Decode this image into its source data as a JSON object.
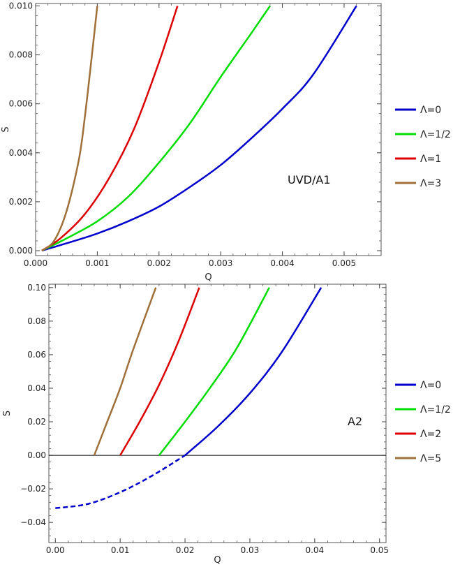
{
  "chart_data": [
    {
      "type": "line",
      "xlabel": "Q",
      "ylabel": "S",
      "xlim": [
        0,
        0.0056
      ],
      "ylim": [
        -0.0002,
        0.0101
      ],
      "x_ticks": [
        "0.000",
        "0.001",
        "0.002",
        "0.003",
        "0.004",
        "0.005"
      ],
      "y_ticks": [
        "0.000",
        "0.002",
        "0.004",
        "0.006",
        "0.008",
        "0.010"
      ],
      "annotation": "UVD/A1",
      "legend_position": "right",
      "series": [
        {
          "name": "Λ=0",
          "color": "#0000cc",
          "x": [
            0.0001,
            0.0005,
            0.001,
            0.0015,
            0.002,
            0.0025,
            0.003,
            0.0035,
            0.004,
            0.0045,
            0.0052
          ],
          "y": [
            0.0,
            0.0003,
            0.0007,
            0.0012,
            0.0018,
            0.0026,
            0.0035,
            0.0046,
            0.0058,
            0.0072,
            0.01
          ]
        },
        {
          "name": "Λ=1/2",
          "color": "#00dd00",
          "x": [
            0.0001,
            0.0005,
            0.001,
            0.0015,
            0.002,
            0.0025,
            0.003,
            0.0035,
            0.0038
          ],
          "y": [
            0.0,
            0.0005,
            0.0012,
            0.0022,
            0.0036,
            0.0052,
            0.0071,
            0.0089,
            0.01
          ]
        },
        {
          "name": "Λ=1",
          "color": "#dd0000",
          "x": [
            0.0001,
            0.0004,
            0.0008,
            0.0012,
            0.0016,
            0.002,
            0.0023
          ],
          "y": [
            0.0,
            0.0005,
            0.0015,
            0.003,
            0.005,
            0.0077,
            0.01
          ]
        },
        {
          "name": "Λ=3",
          "color": "#a0703a",
          "x": [
            0.0001,
            0.0003,
            0.0005,
            0.0007,
            0.0008,
            0.0009,
            0.001
          ],
          "y": [
            0.0,
            0.0004,
            0.0016,
            0.0037,
            0.0055,
            0.0077,
            0.01
          ]
        }
      ]
    },
    {
      "type": "line",
      "xlabel": "Q",
      "ylabel": "S",
      "xlim": [
        -0.001,
        0.051
      ],
      "ylim": [
        -0.052,
        0.102
      ],
      "x_ticks": [
        "0.00",
        "0.01",
        "0.02",
        "0.03",
        "0.04",
        "0.05"
      ],
      "y_ticks": [
        "-0.04",
        "-0.02",
        "0.00",
        "0.02",
        "0.04",
        "0.06",
        "0.08",
        "0.10"
      ],
      "annotation": "A2",
      "legend_position": "right",
      "series": [
        {
          "name": "Λ=0",
          "color": "#0000cc",
          "x": [
            0.0,
            0.005,
            0.01,
            0.015,
            0.02,
            0.025,
            0.03,
            0.035,
            0.041
          ],
          "y": [
            -0.0315,
            -0.029,
            -0.022,
            -0.012,
            0.0,
            0.017,
            0.037,
            0.062,
            0.1
          ],
          "dashed_below_y": 0.0
        },
        {
          "name": "Λ=1/2",
          "color": "#00dd00",
          "x": [
            0.016,
            0.02,
            0.024,
            0.028,
            0.033
          ],
          "y": [
            0.0,
            0.02,
            0.041,
            0.064,
            0.1
          ]
        },
        {
          "name": "Λ=2",
          "color": "#dd0000",
          "x": [
            0.01,
            0.013,
            0.016,
            0.019,
            0.0222
          ],
          "y": [
            0.0,
            0.02,
            0.042,
            0.068,
            0.1
          ]
        },
        {
          "name": "Λ=5",
          "color": "#a0703a",
          "x": [
            0.006,
            0.008,
            0.01,
            0.012,
            0.0155
          ],
          "y": [
            0.0,
            0.02,
            0.04,
            0.063,
            0.1
          ]
        }
      ]
    }
  ]
}
